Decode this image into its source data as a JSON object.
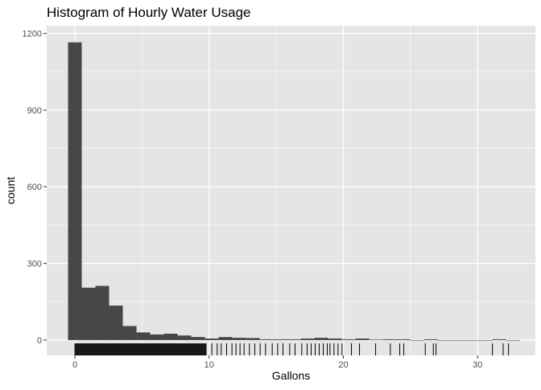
{
  "chart_data": {
    "type": "bar",
    "title": "Histogram of Hourly Water Usage",
    "xlabel": "Gallons",
    "ylabel": "count",
    "xlim": [
      -2.1,
      34.3
    ],
    "ylim": [
      -60,
      1230
    ],
    "x_ticks": [
      0,
      10,
      20,
      30
    ],
    "x_tick_labels": [
      "0",
      "10",
      "20",
      "30"
    ],
    "y_ticks": [
      0,
      300,
      600,
      900,
      1200
    ],
    "y_tick_labels": [
      "0",
      "300",
      "600",
      "900",
      "1200"
    ],
    "grid": true,
    "legend": "none",
    "bin_width": 1.02,
    "bins": [
      {
        "x": 0.0,
        "count": 1165
      },
      {
        "x": 1.02,
        "count": 205
      },
      {
        "x": 2.04,
        "count": 212
      },
      {
        "x": 3.06,
        "count": 135
      },
      {
        "x": 4.08,
        "count": 55
      },
      {
        "x": 5.1,
        "count": 30
      },
      {
        "x": 6.12,
        "count": 22
      },
      {
        "x": 7.14,
        "count": 25
      },
      {
        "x": 8.16,
        "count": 18
      },
      {
        "x": 9.18,
        "count": 12
      },
      {
        "x": 10.2,
        "count": 6
      },
      {
        "x": 11.22,
        "count": 12
      },
      {
        "x": 12.24,
        "count": 9
      },
      {
        "x": 13.26,
        "count": 8
      },
      {
        "x": 14.28,
        "count": 3
      },
      {
        "x": 15.3,
        "count": 3
      },
      {
        "x": 16.32,
        "count": 3
      },
      {
        "x": 17.34,
        "count": 6
      },
      {
        "x": 18.36,
        "count": 9
      },
      {
        "x": 19.38,
        "count": 6
      },
      {
        "x": 20.4,
        "count": 3
      },
      {
        "x": 21.42,
        "count": 6
      },
      {
        "x": 22.44,
        "count": 2
      },
      {
        "x": 23.46,
        "count": 3
      },
      {
        "x": 24.48,
        "count": 3
      },
      {
        "x": 25.5,
        "count": 0
      },
      {
        "x": 26.52,
        "count": 3
      },
      {
        "x": 27.54,
        "count": 0
      },
      {
        "x": 28.56,
        "count": 0
      },
      {
        "x": 29.58,
        "count": 0
      },
      {
        "x": 30.6,
        "count": 0
      },
      {
        "x": 31.62,
        "count": 3
      },
      {
        "x": 32.64,
        "count": 0
      }
    ],
    "rug_dense_range": [
      0,
      9.8
    ],
    "rug_x": [
      10.2,
      10.6,
      10.9,
      11.3,
      11.7,
      12.0,
      12.3,
      12.6,
      13.0,
      13.4,
      13.8,
      14.2,
      14.7,
      15.1,
      15.5,
      16.0,
      16.4,
      16.9,
      17.3,
      17.6,
      17.9,
      18.2,
      18.5,
      18.8,
      19.0,
      19.3,
      19.6,
      19.9,
      20.6,
      21.2,
      22.4,
      23.5,
      24.2,
      24.5,
      26.1,
      26.7,
      26.9,
      31.1,
      31.9,
      32.3
    ],
    "colors": {
      "bar_fill": "#474747",
      "panel_background": "#e5e5e5",
      "grid_major": "#ffffff",
      "tick_label": "#4d4d4d",
      "rug": "#000000"
    }
  }
}
